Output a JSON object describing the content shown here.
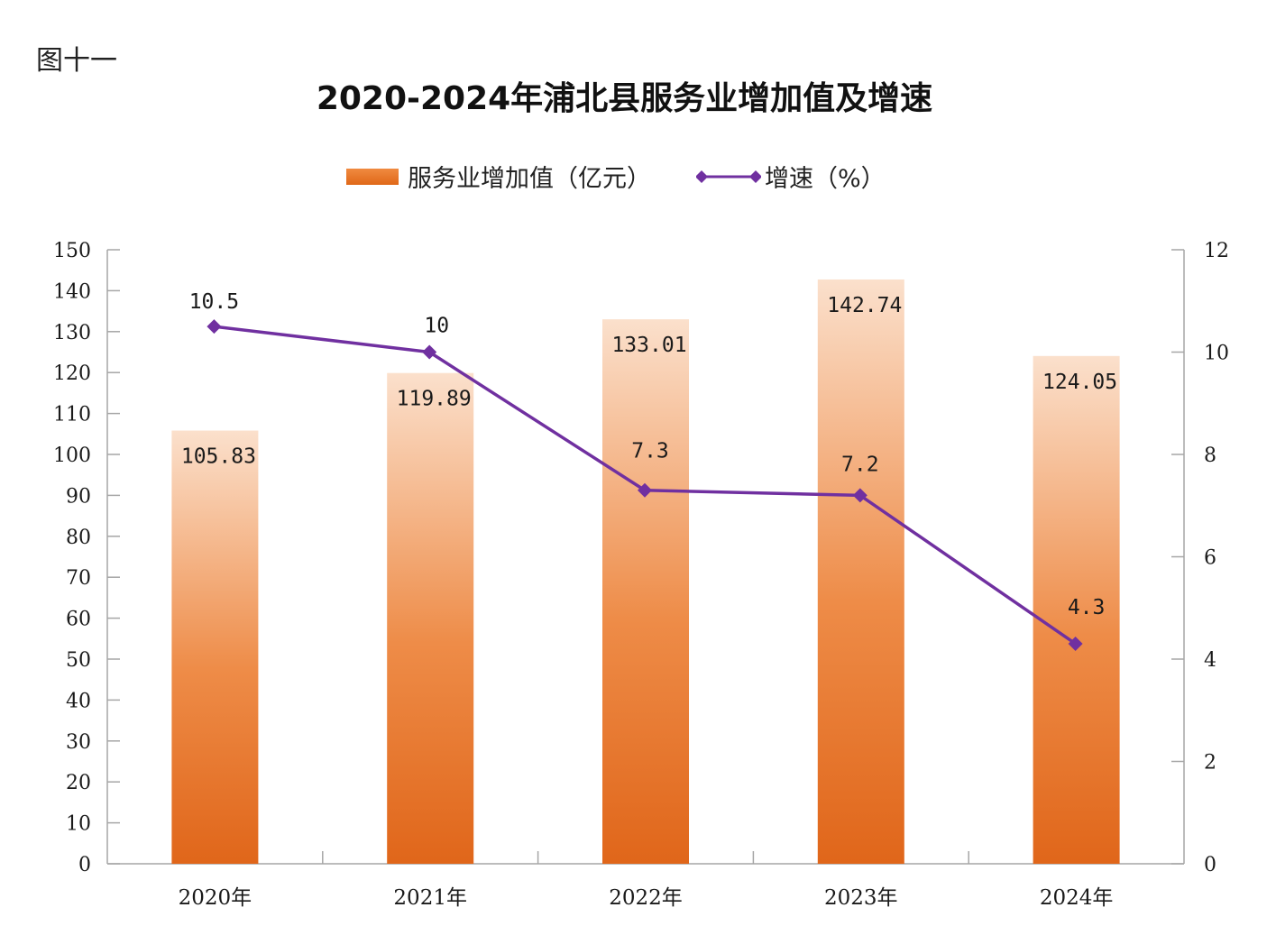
{
  "figure_label": "图十一",
  "chart_data": {
    "type": "bar",
    "title": "2020-2024年浦北县服务业增加值及增速",
    "categories": [
      "2020年",
      "2021年",
      "2022年",
      "2023年",
      "2024年"
    ],
    "series": [
      {
        "name": "服务业增加值（亿元）",
        "type": "bar",
        "axis": "left",
        "values": [
          105.83,
          119.89,
          133.01,
          142.74,
          124.05
        ],
        "labels": [
          "105.83",
          "119.89",
          "133.01",
          "142.74",
          "124.05"
        ],
        "color_top": "#fbe0cc",
        "color_bottom": "#e0661a"
      },
      {
        "name": "增速（%）",
        "type": "line",
        "axis": "right",
        "values": [
          10.5,
          10,
          7.3,
          7.2,
          4.3
        ],
        "labels": [
          "10.5",
          "10",
          "7.3",
          "7.2",
          "4.3"
        ],
        "color": "#7030a0",
        "marker": "diamond"
      }
    ],
    "y_left": {
      "min": 0,
      "max": 150,
      "step": 10,
      "ticks": [
        "0",
        "10",
        "20",
        "30",
        "40",
        "50",
        "60",
        "70",
        "80",
        "90",
        "100",
        "110",
        "120",
        "130",
        "140",
        "150"
      ]
    },
    "y_right": {
      "min": 0,
      "max": 12,
      "step": 2,
      "ticks": [
        "0",
        "2",
        "4",
        "6",
        "8",
        "10",
        "12"
      ]
    },
    "xlabel": "",
    "ylabel": "",
    "grid": false,
    "legend_position": "top-center",
    "axis_color": "#a6a6a6"
  }
}
